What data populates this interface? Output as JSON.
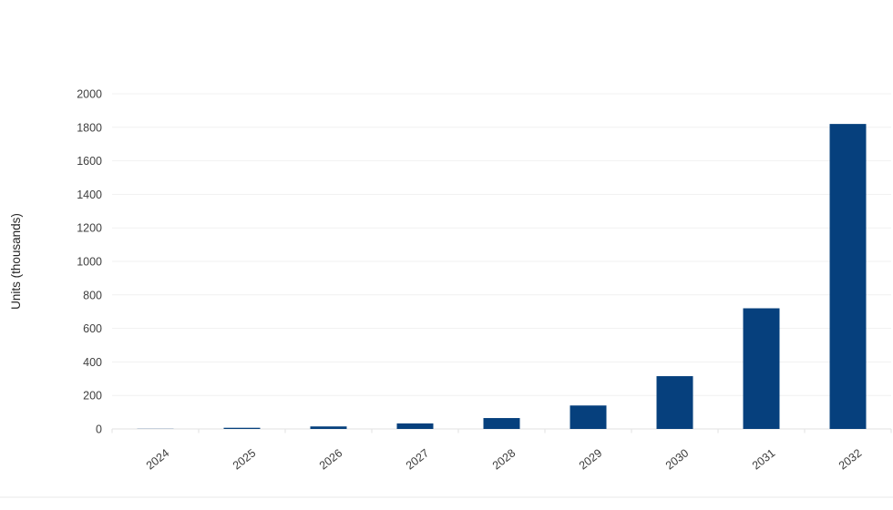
{
  "page": {
    "background": "#ffffff"
  },
  "chart_data": {
    "type": "bar",
    "title": "",
    "categories": [
      "2024",
      "2025",
      "2026",
      "2027",
      "2028",
      "2029",
      "2030",
      "2031",
      "2032"
    ],
    "values": [
      1,
      7,
      15,
      33,
      65,
      140,
      315,
      720,
      1820
    ],
    "xlabel": "",
    "ylabel": "Units (thousands)",
    "ylim": [
      0,
      2000
    ],
    "ytick_step": 200,
    "ytick_labels": [
      "0",
      "200",
      "400",
      "600",
      "800",
      "1000",
      "1200",
      "1400",
      "1600",
      "1800",
      "2000"
    ],
    "grid": true,
    "legend_position": "none",
    "bar_color": "#06407d",
    "gridline_color": "#f1f1f1",
    "baseline_color": "#e2e2e2",
    "tick_mark_color": "#e2e2e2",
    "axis_label_color": "#3f3f3f",
    "axis_title_color": "#252525",
    "footer_divider_color": "#eaeaea"
  }
}
